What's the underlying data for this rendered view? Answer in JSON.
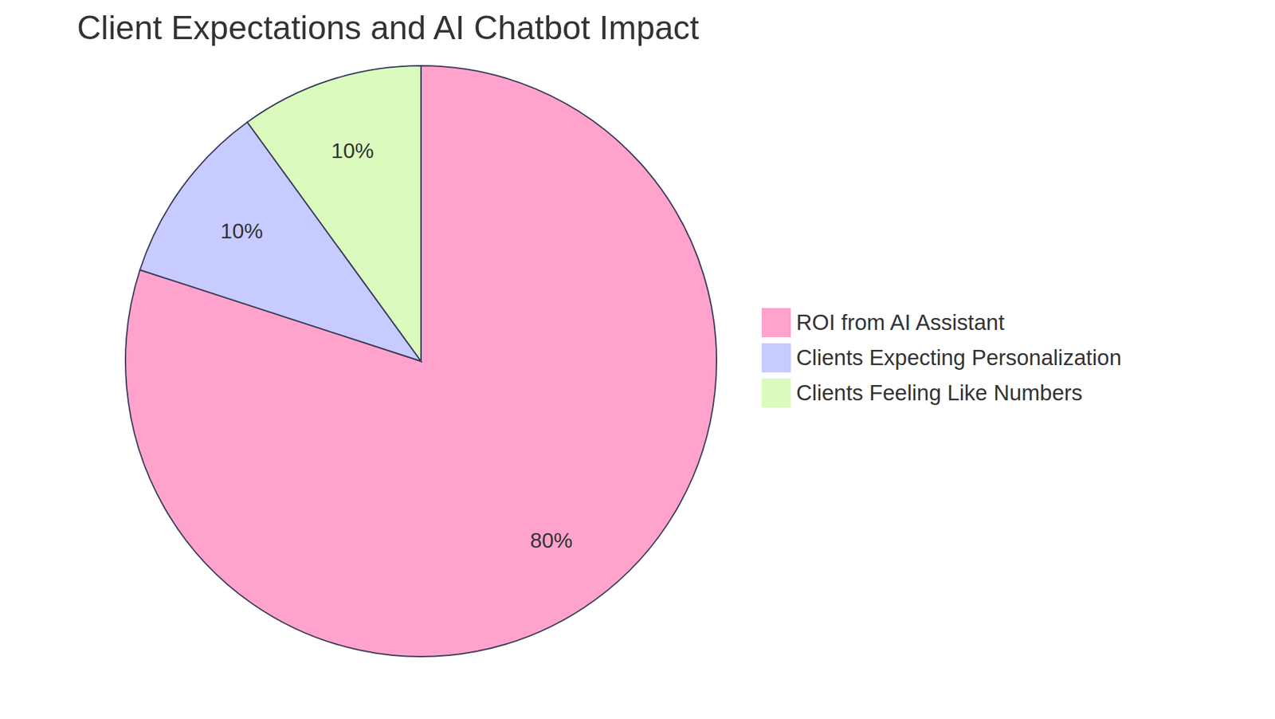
{
  "chart_data": {
    "type": "pie",
    "title": "Client Expectations and AI Chatbot Impact",
    "categories": [
      "ROI from AI Assistant",
      "Clients Expecting Personalization",
      "Clients Feeling Like Numbers"
    ],
    "values": [
      80,
      10,
      10
    ],
    "value_labels": [
      "80%",
      "10%",
      "10%"
    ],
    "colors": [
      "#FFA3CC",
      "#C7CBFF",
      "#DAFBBD"
    ],
    "data_labels": true,
    "legend": "right"
  }
}
